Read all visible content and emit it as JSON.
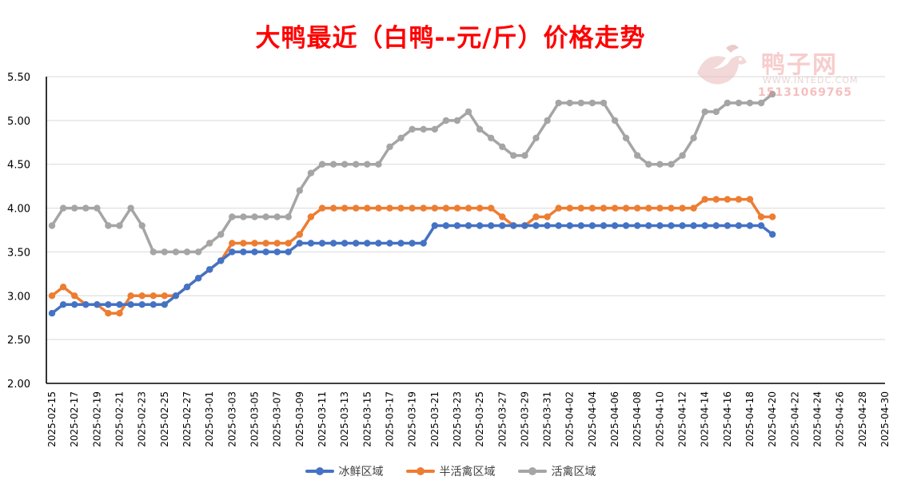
{
  "title": "大鸭最近（白鸭--元/斤）价格走势",
  "watermark": {
    "brand": "鸭子网",
    "site": "WWW.INTEDC.COM",
    "phone": "15131069765"
  },
  "chart_data": {
    "type": "line",
    "title": "大鸭最近（白鸭--元/斤）价格走势",
    "ylim": [
      2.0,
      5.5
    ],
    "yticks": [
      "2.00",
      "2.50",
      "3.00",
      "3.50",
      "4.00",
      "4.50",
      "5.00",
      "5.50"
    ],
    "grid": true,
    "legend_position": "bottom",
    "x_range": [
      "2025-02-15",
      "2025-04-30"
    ],
    "x_tick_labels": [
      "2025-02-15",
      "2025-02-17",
      "2025-02-19",
      "2025-02-21",
      "2025-02-23",
      "2025-02-25",
      "2025-02-27",
      "2025-03-01",
      "2025-03-03",
      "2025-03-05",
      "2025-03-07",
      "2025-03-09",
      "2025-03-11",
      "2025-03-13",
      "2025-03-15",
      "2025-03-17",
      "2025-03-19",
      "2025-03-21",
      "2025-03-23",
      "2025-03-25",
      "2025-03-27",
      "2025-03-29",
      "2025-03-31",
      "2025-04-02",
      "2025-04-04",
      "2025-04-06",
      "2025-04-08",
      "2025-04-10",
      "2025-04-12",
      "2025-04-14",
      "2025-04-16",
      "2025-04-18",
      "2025-04-20",
      "2025-04-22",
      "2025-04-24",
      "2025-04-26",
      "2025-04-28",
      "2025-04-30"
    ],
    "x": [
      "2025-02-15",
      "2025-02-16",
      "2025-02-17",
      "2025-02-18",
      "2025-02-19",
      "2025-02-20",
      "2025-02-21",
      "2025-02-22",
      "2025-02-23",
      "2025-02-24",
      "2025-02-25",
      "2025-02-26",
      "2025-02-27",
      "2025-02-28",
      "2025-03-01",
      "2025-03-02",
      "2025-03-03",
      "2025-03-04",
      "2025-03-05",
      "2025-03-06",
      "2025-03-07",
      "2025-03-08",
      "2025-03-09",
      "2025-03-10",
      "2025-03-11",
      "2025-03-12",
      "2025-03-13",
      "2025-03-14",
      "2025-03-15",
      "2025-03-16",
      "2025-03-17",
      "2025-03-18",
      "2025-03-19",
      "2025-03-20",
      "2025-03-21",
      "2025-03-22",
      "2025-03-23",
      "2025-03-24",
      "2025-03-25",
      "2025-03-26",
      "2025-03-27",
      "2025-03-28",
      "2025-03-29",
      "2025-03-30",
      "2025-03-31",
      "2025-04-01",
      "2025-04-02",
      "2025-04-03",
      "2025-04-04",
      "2025-04-05",
      "2025-04-06",
      "2025-04-07",
      "2025-04-08",
      "2025-04-09",
      "2025-04-10",
      "2025-04-11",
      "2025-04-12",
      "2025-04-13",
      "2025-04-14",
      "2025-04-15",
      "2025-04-16",
      "2025-04-17",
      "2025-04-18",
      "2025-04-19",
      "2025-04-20"
    ],
    "series": [
      {
        "name": "冰鲜区域",
        "color": "#4472c4",
        "values": [
          2.8,
          2.9,
          2.9,
          2.9,
          2.9,
          2.9,
          2.9,
          2.9,
          2.9,
          2.9,
          2.9,
          3.0,
          3.1,
          3.2,
          3.3,
          3.4,
          3.5,
          3.5,
          3.5,
          3.5,
          3.5,
          3.5,
          3.6,
          3.6,
          3.6,
          3.6,
          3.6,
          3.6,
          3.6,
          3.6,
          3.6,
          3.6,
          3.6,
          3.6,
          3.8,
          3.8,
          3.8,
          3.8,
          3.8,
          3.8,
          3.8,
          3.8,
          3.8,
          3.8,
          3.8,
          3.8,
          3.8,
          3.8,
          3.8,
          3.8,
          3.8,
          3.8,
          3.8,
          3.8,
          3.8,
          3.8,
          3.8,
          3.8,
          3.8,
          3.8,
          3.8,
          3.8,
          3.8,
          3.8,
          3.7
        ]
      },
      {
        "name": "半活禽区域",
        "color": "#ed7d31",
        "values": [
          3.0,
          3.1,
          3.0,
          2.9,
          2.9,
          2.8,
          2.8,
          3.0,
          3.0,
          3.0,
          3.0,
          3.0,
          3.1,
          3.2,
          3.3,
          3.4,
          3.6,
          3.6,
          3.6,
          3.6,
          3.6,
          3.6,
          3.7,
          3.9,
          4.0,
          4.0,
          4.0,
          4.0,
          4.0,
          4.0,
          4.0,
          4.0,
          4.0,
          4.0,
          4.0,
          4.0,
          4.0,
          4.0,
          4.0,
          4.0,
          3.9,
          3.8,
          3.8,
          3.9,
          3.9,
          4.0,
          4.0,
          4.0,
          4.0,
          4.0,
          4.0,
          4.0,
          4.0,
          4.0,
          4.0,
          4.0,
          4.0,
          4.0,
          4.1,
          4.1,
          4.1,
          4.1,
          4.1,
          3.9,
          3.9
        ]
      },
      {
        "name": "活禽区域",
        "color": "#a5a5a5",
        "values": [
          3.8,
          4.0,
          4.0,
          4.0,
          4.0,
          3.8,
          3.8,
          4.0,
          3.8,
          3.5,
          3.5,
          3.5,
          3.5,
          3.5,
          3.6,
          3.7,
          3.9,
          3.9,
          3.9,
          3.9,
          3.9,
          3.9,
          4.2,
          4.4,
          4.5,
          4.5,
          4.5,
          4.5,
          4.5,
          4.5,
          4.7,
          4.8,
          4.9,
          4.9,
          4.9,
          5.0,
          5.0,
          5.1,
          4.9,
          4.8,
          4.7,
          4.6,
          4.6,
          4.8,
          5.0,
          5.2,
          5.2,
          5.2,
          5.2,
          5.2,
          5.0,
          4.8,
          4.6,
          4.5,
          4.5,
          4.5,
          4.6,
          4.8,
          5.1,
          5.1,
          5.2,
          5.2,
          5.2,
          5.2,
          5.3
        ]
      }
    ]
  }
}
